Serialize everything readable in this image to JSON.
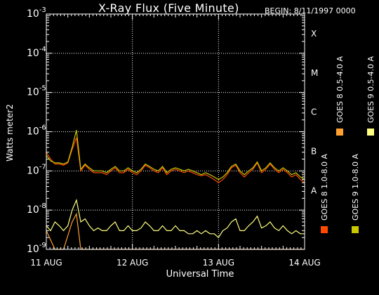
{
  "header": {
    "title": "X-Ray Flux (Five Minute)",
    "begin": "BEGIN: 8/11/1997 0000"
  },
  "chart_data": {
    "type": "line",
    "title": "X-Ray Flux (Five Minute)",
    "xlabel": "Universal Time",
    "ylabel": "Watts meter2",
    "yscale": "log",
    "ylim": [
      1e-09,
      0.001
    ],
    "xlim": [
      0,
      3
    ],
    "x_ticks": [
      {
        "value": 0,
        "label": "11 AUG"
      },
      {
        "value": 1,
        "label": "12 AUG"
      },
      {
        "value": 2,
        "label": "13 AUG"
      },
      {
        "value": 3,
        "label": "14 AUG"
      }
    ],
    "y_ticks": [
      {
        "exp": -9,
        "base": "10",
        "sup": "-9"
      },
      {
        "exp": -8,
        "base": "10",
        "sup": "-8"
      },
      {
        "exp": -7,
        "base": "10",
        "sup": "-7"
      },
      {
        "exp": -6,
        "base": "10",
        "sup": "-6"
      },
      {
        "exp": -5,
        "base": "10",
        "sup": "-5"
      },
      {
        "exp": -4,
        "base": "10",
        "sup": "-4"
      },
      {
        "exp": -3,
        "base": "10",
        "sup": "-3"
      }
    ],
    "flare_classes": [
      {
        "label": "A",
        "exp": -8
      },
      {
        "label": "B",
        "exp": -7
      },
      {
        "label": "C",
        "exp": -6
      },
      {
        "label": "M",
        "exp": -5
      },
      {
        "label": "X",
        "exp": -4
      }
    ],
    "grid": true,
    "legend_position": "right, vertical",
    "series": [
      {
        "name": "GOES 8 1.0-8.0 A",
        "color": "#ff4a00",
        "x": [
          0,
          0.05,
          0.1,
          0.15,
          0.2,
          0.25,
          0.3,
          0.35,
          0.4,
          0.45,
          0.5,
          0.55,
          0.6,
          0.65,
          0.7,
          0.75,
          0.8,
          0.85,
          0.9,
          0.95,
          1.0,
          1.05,
          1.1,
          1.15,
          1.2,
          1.25,
          1.3,
          1.35,
          1.4,
          1.45,
          1.5,
          1.55,
          1.6,
          1.65,
          1.7,
          1.75,
          1.8,
          1.85,
          1.9,
          1.95,
          2.0,
          2.05,
          2.1,
          2.15,
          2.2,
          2.25,
          2.3,
          2.35,
          2.4,
          2.45,
          2.5,
          2.55,
          2.6,
          2.65,
          2.7,
          2.75,
          2.8,
          2.85,
          2.9,
          2.95,
          3.0
        ],
        "values": [
          3e-07,
          2e-07,
          1.5e-07,
          1.5e-07,
          1.4e-07,
          1.6e-07,
          3.5e-07,
          7e-07,
          1e-07,
          1.4e-07,
          1.1e-07,
          9e-08,
          9e-08,
          9e-08,
          8e-08,
          1e-07,
          1.2e-07,
          9e-08,
          9e-08,
          1.1e-07,
          9e-08,
          8e-08,
          1e-07,
          1.4e-07,
          1.2e-07,
          1e-07,
          9e-08,
          1.2e-07,
          8e-08,
          1e-07,
          1.1e-07,
          1e-07,
          9e-08,
          1e-07,
          9e-08,
          8e-08,
          7.5e-08,
          8e-08,
          7e-08,
          6e-08,
          5e-08,
          6e-08,
          8e-08,
          1.2e-07,
          1.4e-07,
          9e-08,
          7e-08,
          9e-08,
          1.1e-07,
          1.6e-07,
          9e-08,
          1.1e-07,
          1.5e-07,
          1.1e-07,
          9e-08,
          1.1e-07,
          9e-08,
          7e-08,
          8e-08,
          6e-08,
          5e-08
        ]
      },
      {
        "name": "GOES 8 0.5-4.0 A",
        "color": "#ffa030",
        "x": [
          0,
          0.1,
          0.2,
          0.3,
          0.35,
          0.4,
          0.45,
          0.5,
          0.6,
          0.7,
          0.8,
          0.9,
          1.0,
          1.1,
          1.2,
          1.3,
          1.4,
          1.5,
          1.6,
          1.7,
          1.8,
          1.9,
          2.0,
          2.1,
          2.2,
          2.3,
          2.4,
          2.5,
          2.6,
          2.7,
          2.8,
          2.9,
          3.0
        ],
        "values": [
          3e-09,
          1e-09,
          1e-09,
          5e-09,
          8e-09,
          1e-09,
          1e-09,
          1e-09,
          1e-09,
          1e-09,
          1e-09,
          1e-09,
          1e-09,
          1e-09,
          1e-09,
          1e-09,
          1e-09,
          1e-09,
          1e-09,
          1e-09,
          1e-09,
          1e-09,
          1e-09,
          1e-09,
          1e-09,
          1e-09,
          1e-09,
          1e-09,
          1e-09,
          1e-09,
          1e-09,
          1e-09,
          1e-09
        ]
      },
      {
        "name": "GOES 9 1.0-8.0 A",
        "color": "#c8c800",
        "x": [
          0,
          0.05,
          0.1,
          0.15,
          0.2,
          0.25,
          0.3,
          0.35,
          0.4,
          0.45,
          0.5,
          0.55,
          0.6,
          0.65,
          0.7,
          0.75,
          0.8,
          0.85,
          0.9,
          0.95,
          1.0,
          1.05,
          1.1,
          1.15,
          1.2,
          1.25,
          1.3,
          1.35,
          1.4,
          1.45,
          1.5,
          1.55,
          1.6,
          1.65,
          1.7,
          1.75,
          1.8,
          1.85,
          1.9,
          1.95,
          2.0,
          2.05,
          2.1,
          2.15,
          2.2,
          2.25,
          2.3,
          2.35,
          2.4,
          2.45,
          2.5,
          2.55,
          2.6,
          2.65,
          2.7,
          2.75,
          2.8,
          2.85,
          2.9,
          2.95,
          3.0
        ],
        "values": [
          2.5e-07,
          1.8e-07,
          1.6e-07,
          1.6e-07,
          1.5e-07,
          1.7e-07,
          4e-07,
          1.1e-06,
          1.1e-07,
          1.5e-07,
          1.2e-07,
          1e-07,
          1e-07,
          1e-07,
          9e-08,
          1.1e-07,
          1.3e-07,
          1e-07,
          1e-07,
          1.2e-07,
          1e-07,
          9e-08,
          1.1e-07,
          1.5e-07,
          1.3e-07,
          1.1e-07,
          1e-07,
          1.3e-07,
          9e-08,
          1.1e-07,
          1.2e-07,
          1.1e-07,
          1e-07,
          1.1e-07,
          1e-07,
          9e-08,
          8e-08,
          9e-08,
          8e-08,
          7e-08,
          6e-08,
          7e-08,
          9e-08,
          1.3e-07,
          1.5e-07,
          1e-07,
          8e-08,
          1e-07,
          1.2e-07,
          1.7e-07,
          1e-07,
          1.2e-07,
          1.6e-07,
          1.2e-07,
          1e-07,
          1.2e-07,
          1e-07,
          8e-08,
          9e-08,
          7e-08,
          6e-08
        ]
      },
      {
        "name": "GOES 9 0.5-4.0 A",
        "color": "#ffff80",
        "x": [
          0,
          0.05,
          0.1,
          0.15,
          0.2,
          0.25,
          0.3,
          0.35,
          0.4,
          0.45,
          0.5,
          0.55,
          0.6,
          0.65,
          0.7,
          0.75,
          0.8,
          0.85,
          0.9,
          0.95,
          1.0,
          1.05,
          1.1,
          1.15,
          1.2,
          1.25,
          1.3,
          1.35,
          1.4,
          1.45,
          1.5,
          1.55,
          1.6,
          1.65,
          1.7,
          1.75,
          1.8,
          1.85,
          1.9,
          1.95,
          2.0,
          2.05,
          2.1,
          2.15,
          2.2,
          2.25,
          2.3,
          2.35,
          2.4,
          2.45,
          2.5,
          2.55,
          2.6,
          2.65,
          2.7,
          2.75,
          2.8,
          2.85,
          2.9,
          2.95,
          3.0
        ],
        "values": [
          4e-09,
          3e-09,
          5e-09,
          4e-09,
          3e-09,
          4e-09,
          1e-08,
          1.8e-08,
          5e-09,
          6e-09,
          4e-09,
          3e-09,
          3.5e-09,
          3e-09,
          3e-09,
          4e-09,
          5e-09,
          3e-09,
          3e-09,
          4e-09,
          3e-09,
          3e-09,
          3.5e-09,
          5e-09,
          4e-09,
          3e-09,
          3e-09,
          4e-09,
          3e-09,
          3e-09,
          4e-09,
          3e-09,
          3e-09,
          2.5e-09,
          2.5e-09,
          3e-09,
          2.5e-09,
          3e-09,
          2.5e-09,
          2.5e-09,
          2e-09,
          3e-09,
          3.5e-09,
          5e-09,
          6e-09,
          3e-09,
          3e-09,
          4e-09,
          5e-09,
          7e-09,
          3.5e-09,
          4e-09,
          5e-09,
          3.5e-09,
          3e-09,
          4e-09,
          3e-09,
          2.5e-09,
          3e-09,
          2.5e-09,
          2.5e-09
        ]
      }
    ]
  }
}
